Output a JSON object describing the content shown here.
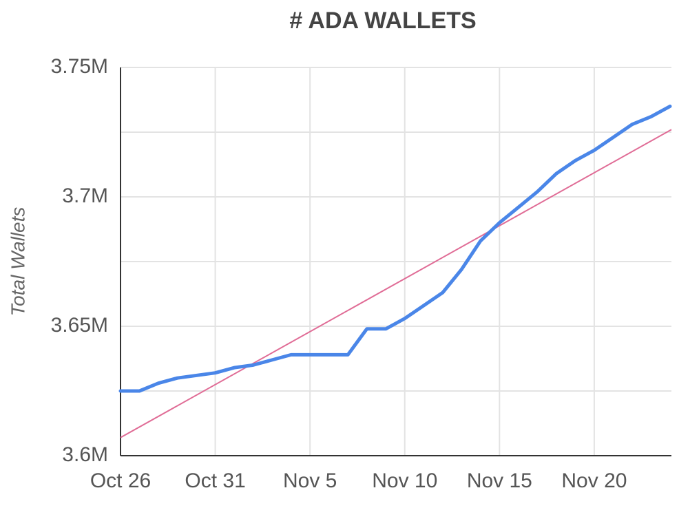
{
  "chart_data": {
    "type": "line",
    "title": "# ADA WALLETS",
    "y_label": "Total Wallets",
    "categories": [
      "Oct 26",
      null,
      null,
      null,
      null,
      "Oct 31",
      null,
      null,
      null,
      null,
      "Nov 5",
      null,
      null,
      null,
      null,
      "Nov 10",
      null,
      null,
      null,
      null,
      "Nov 15",
      null,
      null,
      null,
      null,
      "Nov 20",
      null,
      null,
      null,
      null
    ],
    "series": [
      {
        "name": "Total Wallets",
        "color": "#4a86e8",
        "values": [
          3625000,
          3625000,
          3628000,
          3630000,
          3631000,
          3632000,
          3634000,
          3635000,
          3637000,
          3639000,
          3639000,
          3639000,
          3639000,
          3649000,
          3649000,
          3653000,
          3658000,
          3663000,
          3672000,
          3683000,
          3690000,
          3696000,
          3702000,
          3709000,
          3714000,
          3718000,
          3723000,
          3728000,
          3731000,
          3735000
        ]
      }
    ],
    "trendline": {
      "color": "#e06c96",
      "values": [
        3607000,
        3726000
      ]
    },
    "ylim": [
      3600000,
      3750000
    ],
    "yticks": [
      {
        "value": 3600000,
        "label": "3.6M"
      },
      {
        "value": 3650000,
        "label": "3.65M"
      },
      {
        "value": 3700000,
        "label": "3.7M"
      },
      {
        "value": 3750000,
        "label": "3.75M"
      }
    ],
    "minor_yticks": [
      3625000,
      3675000,
      3725000
    ],
    "grid": true
  }
}
